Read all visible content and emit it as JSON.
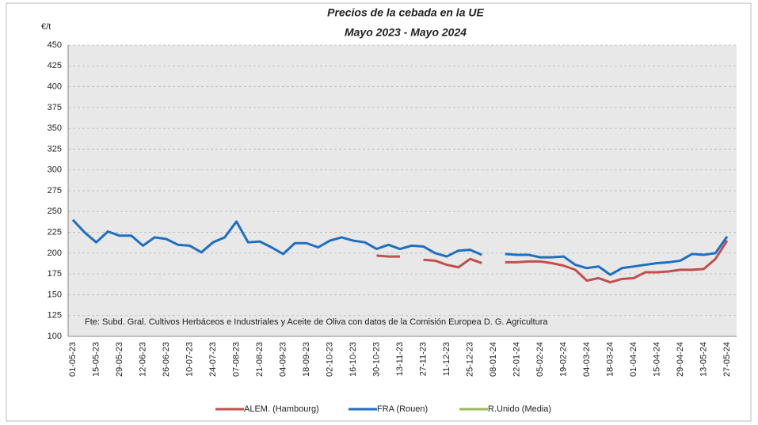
{
  "chart_data": {
    "type": "line",
    "title": "Precios de la cebada en la UE",
    "subtitle": "Mayo 2023 - Mayo 2024",
    "y_label": "€/t",
    "annotation": "Fte: Subd. Gral. Cultivos Herbáceos e Industriales y Aceite de Oliva con datos de la Comisión Europea D. G. Agricultura",
    "categories": [
      "01-05-23",
      null,
      "15-05-23",
      null,
      "29-05-23",
      null,
      "12-06-23",
      null,
      "26-06-23",
      null,
      "10-07-23",
      null,
      "24-07-23",
      null,
      "07-08-23",
      null,
      "21-08-23",
      null,
      "04-09-23",
      null,
      "18-09-23",
      null,
      "02-10-23",
      null,
      "16-10-23",
      null,
      "30-10-23",
      null,
      "13-11-23",
      null,
      "27-11-23",
      null,
      "11-12-23",
      null,
      "25-12-23",
      null,
      "08-01-24",
      null,
      "22-01-24",
      null,
      "05-02-24",
      null,
      "19-02-24",
      null,
      "04-03-24",
      null,
      "18-03-24",
      null,
      "01-04-24",
      null,
      "15-04-24",
      null,
      "29-04-24",
      null,
      "13-05-24",
      null,
      "27-05-24"
    ],
    "series": [
      {
        "name": "ALEM. (Hambourg)",
        "color": "#c0504d",
        "values": [
          null,
          null,
          null,
          null,
          null,
          null,
          null,
          null,
          null,
          null,
          null,
          null,
          null,
          null,
          null,
          null,
          null,
          null,
          null,
          null,
          null,
          null,
          null,
          null,
          null,
          null,
          197,
          196,
          196,
          null,
          192,
          191,
          186,
          183,
          193,
          188,
          null,
          189,
          189,
          190,
          190,
          188,
          185,
          180,
          167,
          170,
          165,
          169,
          170,
          177,
          177,
          178,
          180,
          180,
          181,
          193,
          215
        ]
      },
      {
        "name": "FRA (Rouen)",
        "color": "#1f6fbf",
        "values": [
          240,
          225,
          213,
          226,
          221,
          221,
          209,
          219,
          217,
          210,
          209,
          201,
          213,
          219,
          238,
          213,
          214,
          207,
          199,
          212,
          212,
          207,
          215,
          219,
          215,
          213,
          205,
          210,
          205,
          209,
          208,
          200,
          196,
          203,
          204,
          198,
          null,
          199,
          198,
          198,
          195,
          195,
          196,
          186,
          182,
          184,
          174,
          182,
          184,
          186,
          188,
          189,
          191,
          199,
          198,
          200,
          220
        ]
      },
      {
        "name": "R.Unido (Media)",
        "color": "#9bbb59",
        "values": [
          null,
          null,
          null,
          null,
          null,
          null,
          null,
          null,
          null,
          null,
          null,
          null,
          null,
          null,
          null,
          null,
          null,
          null,
          null,
          null,
          null,
          null,
          null,
          null,
          null,
          null,
          null,
          null,
          null,
          null,
          null,
          null,
          null,
          null,
          null,
          null,
          null,
          null,
          null,
          null,
          null,
          null,
          null,
          null,
          null,
          null,
          null,
          null,
          null,
          null,
          null,
          null,
          null,
          null,
          null,
          null,
          null
        ]
      }
    ],
    "ylim": [
      100,
      450
    ],
    "yticks": [
      100,
      125,
      150,
      175,
      200,
      225,
      250,
      275,
      300,
      325,
      350,
      375,
      400,
      425,
      450
    ],
    "grid": true
  }
}
